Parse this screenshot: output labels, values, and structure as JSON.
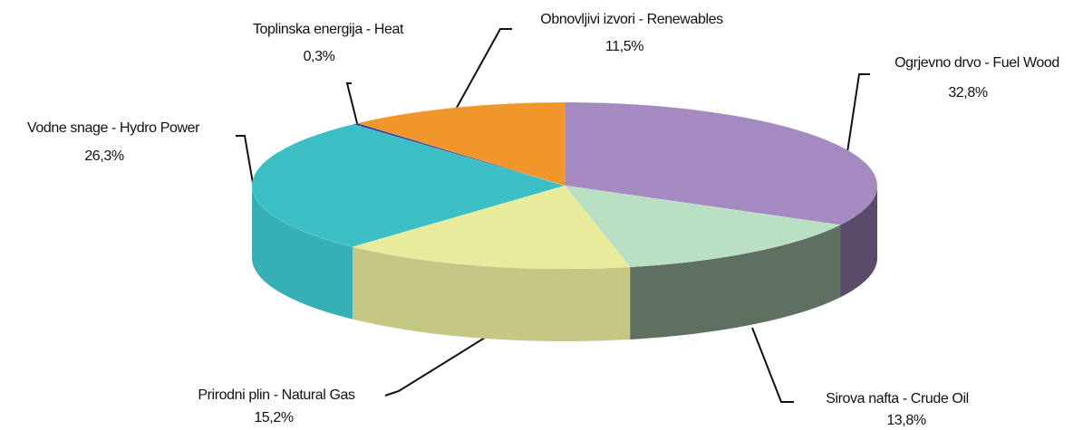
{
  "chart_data": {
    "type": "pie3d",
    "categories": [
      "Ogrjevno drvo - Fuel Wood",
      "Sirova nafta - Crude Oil",
      "Prirodni plin - Natural Gas",
      "Vodne snage - Hydro Power",
      "Toplinska energija - Heat",
      "Obnovljivi izvori - Renewables"
    ],
    "values": [
      32.8,
      13.8,
      15.2,
      26.3,
      0.3,
      11.5
    ],
    "value_labels": [
      "32,8%",
      "13,8%",
      "15,2%",
      "26,3%",
      "0,3%",
      "11,5%"
    ],
    "colors": [
      "#a48ac0",
      "#b9dfc2",
      "#e8ea9c",
      "#3bbfc4",
      "#3a3f94",
      "#f0962a"
    ]
  }
}
